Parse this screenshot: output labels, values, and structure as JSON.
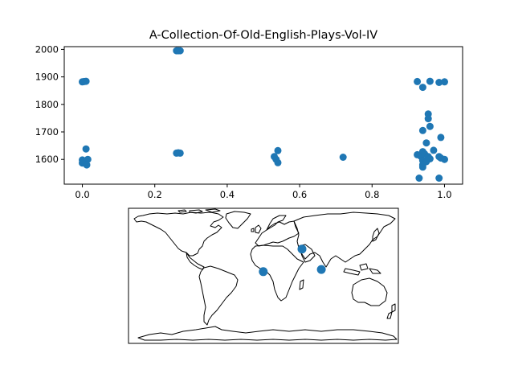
{
  "chart_data": [
    {
      "type": "scatter",
      "title": "A-Collection-Of-Old-English-Plays-Vol-IV",
      "xlabel": "",
      "ylabel": "",
      "xlim": [
        -0.05,
        1.05
      ],
      "ylim": [
        1510,
        2010
      ],
      "xticks": [
        {
          "value": 0.0,
          "label": "0.0"
        },
        {
          "value": 0.2,
          "label": "0.2"
        },
        {
          "value": 0.4,
          "label": "0.4"
        },
        {
          "value": 0.6,
          "label": "0.6"
        },
        {
          "value": 0.8,
          "label": "0.8"
        },
        {
          "value": 1.0,
          "label": "1.0"
        }
      ],
      "yticks": [
        {
          "value": 1600,
          "label": "1600"
        },
        {
          "value": 1700,
          "label": "1700"
        },
        {
          "value": 1800,
          "label": "1800"
        },
        {
          "value": 1900,
          "label": "1900"
        },
        {
          "value": 2000,
          "label": "2000"
        }
      ],
      "grid": false,
      "color": "#1f77b4",
      "points": [
        {
          "x": 0.0,
          "y": 1882
        },
        {
          "x": 0.01,
          "y": 1884
        },
        {
          "x": 0.005,
          "y": 1883
        },
        {
          "x": 0.01,
          "y": 1638
        },
        {
          "x": 0.0,
          "y": 1598
        },
        {
          "x": 0.005,
          "y": 1590
        },
        {
          "x": 0.01,
          "y": 1595
        },
        {
          "x": 0.015,
          "y": 1600
        },
        {
          "x": 0.0,
          "y": 1587
        },
        {
          "x": 0.012,
          "y": 1580
        },
        {
          "x": 0.26,
          "y": 1995
        },
        {
          "x": 0.27,
          "y": 1995
        },
        {
          "x": 0.265,
          "y": 1995
        },
        {
          "x": 0.26,
          "y": 1623
        },
        {
          "x": 0.27,
          "y": 1623
        },
        {
          "x": 0.265,
          "y": 1624
        },
        {
          "x": 0.53,
          "y": 1610
        },
        {
          "x": 0.54,
          "y": 1632
        },
        {
          "x": 0.535,
          "y": 1600
        },
        {
          "x": 0.54,
          "y": 1588
        },
        {
          "x": 0.72,
          "y": 1608
        },
        {
          "x": 0.925,
          "y": 1883
        },
        {
          "x": 0.94,
          "y": 1862
        },
        {
          "x": 0.96,
          "y": 1884
        },
        {
          "x": 0.985,
          "y": 1880
        },
        {
          "x": 1.0,
          "y": 1882
        },
        {
          "x": 0.955,
          "y": 1765
        },
        {
          "x": 0.955,
          "y": 1748
        },
        {
          "x": 0.96,
          "y": 1720
        },
        {
          "x": 0.94,
          "y": 1705
        },
        {
          "x": 0.99,
          "y": 1680
        },
        {
          "x": 0.95,
          "y": 1660
        },
        {
          "x": 0.97,
          "y": 1633
        },
        {
          "x": 0.94,
          "y": 1628
        },
        {
          "x": 0.925,
          "y": 1617
        },
        {
          "x": 0.935,
          "y": 1611
        },
        {
          "x": 0.945,
          "y": 1620
        },
        {
          "x": 0.955,
          "y": 1610
        },
        {
          "x": 0.96,
          "y": 1602
        },
        {
          "x": 0.985,
          "y": 1610
        },
        {
          "x": 0.99,
          "y": 1605
        },
        {
          "x": 1.0,
          "y": 1600
        },
        {
          "x": 0.94,
          "y": 1596
        },
        {
          "x": 0.95,
          "y": 1592
        },
        {
          "x": 0.94,
          "y": 1580
        },
        {
          "x": 0.94,
          "y": 1572
        },
        {
          "x": 0.93,
          "y": 1532
        },
        {
          "x": 0.985,
          "y": 1532
        }
      ]
    },
    {
      "type": "scatter",
      "title": "",
      "projection": "world map",
      "xlim": [
        -180,
        180
      ],
      "ylim": [
        -90,
        90
      ],
      "color": "#1f77b4",
      "points": [
        {
          "lon": -0.2,
          "lat": 5.6
        },
        {
          "lon": 51.4,
          "lat": 35.7
        },
        {
          "lon": 77.2,
          "lat": 8.5
        }
      ]
    }
  ]
}
